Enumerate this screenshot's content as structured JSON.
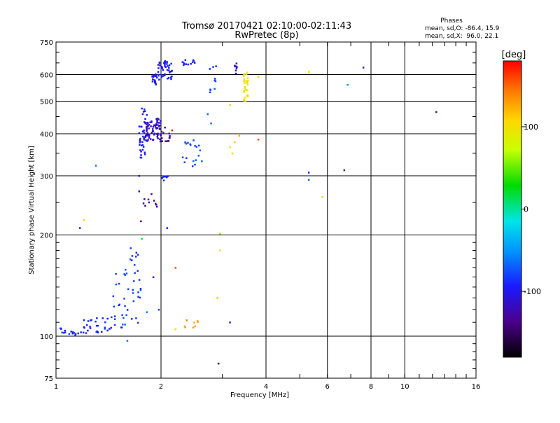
{
  "header": {
    "title_line1": "Tromsø 20170421 02:10:00-02:11:43",
    "title_line2": "RwPretec (8p)"
  },
  "stats": {
    "heading": "Phases",
    "line_o": "mean, sd,O: -86.4, 15.9",
    "line_x": "mean, sd,X:  96.0, 22.1"
  },
  "colorbar": {
    "label": "[deg]",
    "ticks": [
      {
        "value": 100,
        "label": "100"
      },
      {
        "value": 0,
        "label": "0"
      },
      {
        "value": -100,
        "label": "-100"
      }
    ],
    "range": [
      -180,
      180
    ]
  },
  "chart_data": {
    "type": "scatter",
    "xlabel": "Frequency [MHz]",
    "ylabel": "Stationary phase Virtual Height [km]",
    "xscale": "log",
    "yscale": "log",
    "xlim": [
      1,
      16
    ],
    "ylim": [
      75,
      750
    ],
    "xticks": [
      1,
      2,
      4,
      6,
      8,
      10,
      16
    ],
    "yticks": [
      75,
      100,
      200,
      300,
      400,
      500,
      600,
      750
    ],
    "grid": true,
    "clusters": [
      {
        "f0": 1.02,
        "f1": 1.2,
        "h0": 100,
        "h1": 106,
        "phase": -85,
        "n": 18
      },
      {
        "f0": 1.2,
        "f1": 1.45,
        "h0": 102,
        "h1": 115,
        "phase": -90,
        "n": 30
      },
      {
        "f0": 1.45,
        "f1": 1.75,
        "h0": 105,
        "h1": 160,
        "phase": -80,
        "n": 40
      },
      {
        "f0": 1.62,
        "f1": 1.72,
        "h0": 160,
        "h1": 185,
        "phase": -85,
        "n": 8
      },
      {
        "f0": 1.73,
        "f1": 1.82,
        "h0": 340,
        "h1": 480,
        "phase": -95,
        "n": 40
      },
      {
        "f0": 1.8,
        "f1": 2.0,
        "h0": 380,
        "h1": 445,
        "phase": -115,
        "n": 70
      },
      {
        "f0": 1.78,
        "f1": 1.95,
        "h0": 240,
        "h1": 280,
        "phase": -130,
        "n": 10
      },
      {
        "f0": 1.88,
        "f1": 1.95,
        "h0": 560,
        "h1": 605,
        "phase": -100,
        "n": 18
      },
      {
        "f0": 1.96,
        "f1": 2.15,
        "h0": 580,
        "h1": 660,
        "phase": -95,
        "n": 45
      },
      {
        "f0": 2.0,
        "f1": 2.12,
        "h0": 380,
        "h1": 420,
        "phase": -140,
        "n": 12
      },
      {
        "f0": 2.0,
        "f1": 2.1,
        "h0": 290,
        "h1": 300,
        "phase": -90,
        "n": 8
      },
      {
        "f0": 2.3,
        "f1": 2.5,
        "h0": 640,
        "h1": 665,
        "phase": -95,
        "n": 12
      },
      {
        "f0": 2.3,
        "f1": 2.65,
        "h0": 320,
        "h1": 385,
        "phase": -75,
        "n": 20
      },
      {
        "f0": 2.75,
        "f1": 2.9,
        "h0": 520,
        "h1": 640,
        "phase": -80,
        "n": 10
      },
      {
        "f0": 3.25,
        "f1": 3.3,
        "h0": 600,
        "h1": 650,
        "phase": -120,
        "n": 8
      },
      {
        "f0": 3.45,
        "f1": 3.55,
        "h0": 500,
        "h1": 620,
        "phase": 100,
        "n": 28
      },
      {
        "f0": 2.3,
        "f1": 2.55,
        "h0": 106,
        "h1": 112,
        "phase": 135,
        "n": 8
      }
    ],
    "points": [
      {
        "f": 1.17,
        "h": 210,
        "phase": -90
      },
      {
        "f": 1.2,
        "h": 222,
        "phase": 100
      },
      {
        "f": 1.3,
        "h": 322,
        "phase": -60
      },
      {
        "f": 1.6,
        "h": 97,
        "phase": -60
      },
      {
        "f": 1.75,
        "h": 220,
        "phase": -130
      },
      {
        "f": 1.73,
        "h": 270,
        "phase": -140
      },
      {
        "f": 1.73,
        "h": 300,
        "phase": -100
      },
      {
        "f": 1.76,
        "h": 195,
        "phase": 20
      },
      {
        "f": 1.82,
        "h": 118,
        "phase": -60
      },
      {
        "f": 1.9,
        "h": 150,
        "phase": -90
      },
      {
        "f": 1.97,
        "h": 120,
        "phase": -80
      },
      {
        "f": 2.08,
        "h": 210,
        "phase": -90
      },
      {
        "f": 2.2,
        "h": 160,
        "phase": 160
      },
      {
        "f": 2.2,
        "h": 105,
        "phase": 110
      },
      {
        "f": 2.15,
        "h": 410,
        "phase": 180
      },
      {
        "f": 2.72,
        "h": 458,
        "phase": -70
      },
      {
        "f": 2.78,
        "h": 430,
        "phase": -65
      },
      {
        "f": 2.95,
        "h": 202,
        "phase": 60
      },
      {
        "f": 2.95,
        "h": 180,
        "phase": 100
      },
      {
        "f": 2.9,
        "h": 130,
        "phase": 115
      },
      {
        "f": 2.92,
        "h": 83,
        "phase": -150
      },
      {
        "f": 3.15,
        "h": 110,
        "phase": -90
      },
      {
        "f": 3.15,
        "h": 488,
        "phase": 110
      },
      {
        "f": 3.15,
        "h": 365,
        "phase": 100
      },
      {
        "f": 3.2,
        "h": 350,
        "phase": 110
      },
      {
        "f": 3.25,
        "h": 378,
        "phase": 115
      },
      {
        "f": 3.35,
        "h": 395,
        "phase": 125
      },
      {
        "f": 3.8,
        "h": 385,
        "phase": 160
      },
      {
        "f": 3.8,
        "h": 590,
        "phase": 110
      },
      {
        "f": 5.3,
        "h": 612,
        "phase": 100
      },
      {
        "f": 5.3,
        "h": 307,
        "phase": -90
      },
      {
        "f": 5.3,
        "h": 292,
        "phase": -70
      },
      {
        "f": 5.8,
        "h": 260,
        "phase": 110
      },
      {
        "f": 6.7,
        "h": 312,
        "phase": -100
      },
      {
        "f": 6.85,
        "h": 560,
        "phase": -50
      },
      {
        "f": 7.6,
        "h": 630,
        "phase": -100
      },
      {
        "f": 12.3,
        "h": 465,
        "phase": -130
      }
    ]
  }
}
